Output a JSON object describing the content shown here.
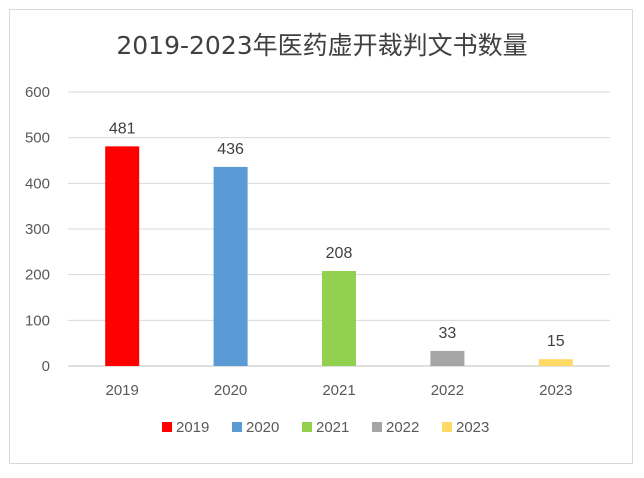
{
  "chart_data": {
    "type": "bar",
    "title": "2019-2023年医药虚开裁判文书数量",
    "categories": [
      "2019",
      "2020",
      "2021",
      "2022",
      "2023"
    ],
    "values": [
      481,
      436,
      208,
      33,
      15
    ],
    "data_labels": [
      "481",
      "436",
      "208",
      "33",
      "15"
    ],
    "colors": [
      "#ff0000",
      "#5b9bd5",
      "#92d050",
      "#a5a5a5",
      "#ffd966"
    ],
    "legend": [
      "2019",
      "2020",
      "2021",
      "2022",
      "2023"
    ],
    "legend_position": "bottom",
    "ylim": [
      0,
      600
    ],
    "yticks": [
      0,
      100,
      200,
      300,
      400,
      500,
      600
    ],
    "grid": true,
    "xlabel": "",
    "ylabel": ""
  }
}
